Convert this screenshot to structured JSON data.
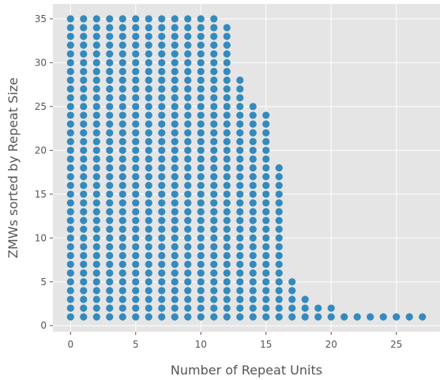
{
  "chart_data": {
    "type": "scatter",
    "title": "",
    "xlabel": "Number of Repeat Units",
    "ylabel": "ZMWs sorted by Repeat Size",
    "xlim": [
      -1.35,
      28.35
    ],
    "ylim": [
      -0.7,
      36.7
    ],
    "x_ticks": [
      0,
      5,
      10,
      15,
      20,
      25
    ],
    "y_ticks": [
      0,
      5,
      10,
      15,
      20,
      25,
      30,
      35
    ],
    "grid": true,
    "style": "ggplot",
    "colors": {
      "plot_background": "#e5e5e5",
      "grid": "#ffffff",
      "marker": "#348abd",
      "text": "#555555"
    },
    "series": [
      {
        "points": [
          [
            0,
            35
          ],
          [
            1,
            35
          ],
          [
            2,
            35
          ],
          [
            3,
            35
          ],
          [
            4,
            35
          ],
          [
            5,
            35
          ],
          [
            6,
            35
          ],
          [
            7,
            35
          ],
          [
            8,
            35
          ],
          [
            9,
            35
          ],
          [
            10,
            35
          ],
          [
            11,
            35
          ],
          [
            12,
            34
          ],
          [
            13,
            28
          ],
          [
            14,
            25
          ],
          [
            15,
            24
          ],
          [
            16,
            18
          ],
          [
            17,
            5
          ],
          [
            18,
            3
          ],
          [
            19,
            2
          ],
          [
            20,
            2
          ],
          [
            21,
            1
          ],
          [
            22,
            1
          ],
          [
            23,
            1
          ],
          [
            24,
            1
          ],
          [
            25,
            1
          ],
          [
            26,
            1
          ],
          [
            27,
            1
          ]
        ],
        "note_per_point": ""
      }
    ]
  }
}
